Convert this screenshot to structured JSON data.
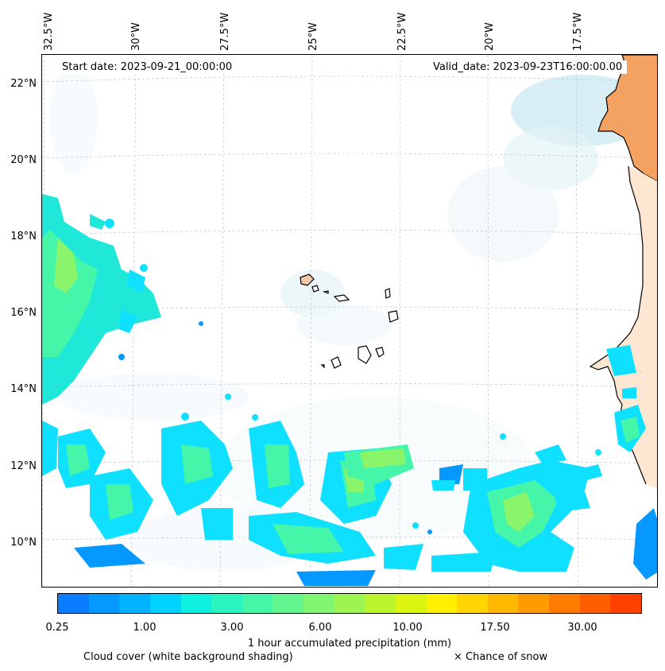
{
  "map": {
    "start_date": "Start date: 2023-09-21_00:00:00",
    "valid_date": "Valid_date: 2023-09-23T16:00:00.00",
    "lon_labels": [
      "32.5°W",
      "30°W",
      "27.5°W",
      "25°W",
      "22.5°W",
      "20°W",
      "17.5°W"
    ],
    "lat_labels": [
      "22°N",
      "20°N",
      "18°N",
      "16°N",
      "14°N",
      "12°N",
      "10°N"
    ],
    "land_color": "#f4a261",
    "cloud_color": "#a8d8e8"
  },
  "colorbar": {
    "title": "1 hour accumulated precipitation (mm)",
    "ticks": [
      "0.25",
      "1.00",
      "3.00",
      "6.00",
      "10.00",
      "17.50",
      "30.00"
    ],
    "colors": [
      "#0a7dff",
      "#0598ff",
      "#00b2ff",
      "#00d2ff",
      "#10f0e0",
      "#2af5c0",
      "#45f5a8",
      "#62f590",
      "#82f570",
      "#9ef550",
      "#bcf530",
      "#dcf510",
      "#fff000",
      "#ffd400",
      "#ffb800",
      "#ff9a00",
      "#ff7c00",
      "#ff5e00",
      "#ff4000"
    ]
  },
  "notes": {
    "cloud": "Cloud cover (white background shading)",
    "snow": "× Chance of snow"
  }
}
